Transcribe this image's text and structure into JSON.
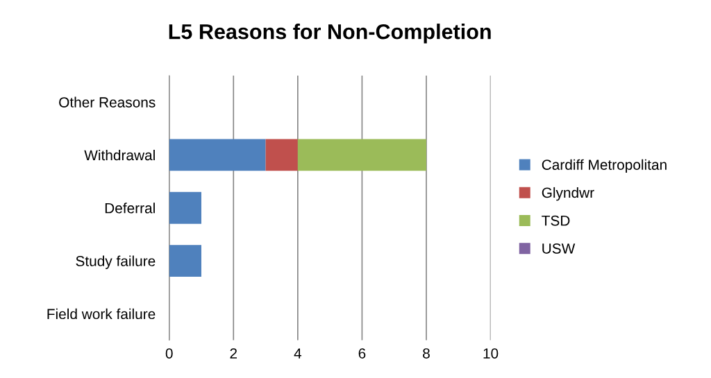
{
  "chart_data": {
    "type": "bar",
    "orientation": "horizontal",
    "stacked": true,
    "title": "L5 Reasons for Non-Completion",
    "categories": [
      "Other Reasons",
      "Withdrawal",
      "Deferral",
      "Study failure",
      "Field work failure"
    ],
    "series": [
      {
        "name": "Cardiff Metropolitan",
        "color": "#4f81bd",
        "values": [
          0,
          3,
          1,
          1,
          0
        ]
      },
      {
        "name": "Glyndwr",
        "color": "#c0504d",
        "values": [
          0,
          1,
          0,
          0,
          0
        ]
      },
      {
        "name": "TSD",
        "color": "#9bbb59",
        "values": [
          0,
          4,
          0,
          0,
          0
        ]
      },
      {
        "name": "USW",
        "color": "#8064a2",
        "values": [
          0,
          0,
          0,
          0,
          0
        ]
      }
    ],
    "xlim": [
      0,
      10
    ],
    "xticks": [
      0,
      2,
      4,
      6,
      8,
      10
    ],
    "grid": "x",
    "legend": "right"
  }
}
